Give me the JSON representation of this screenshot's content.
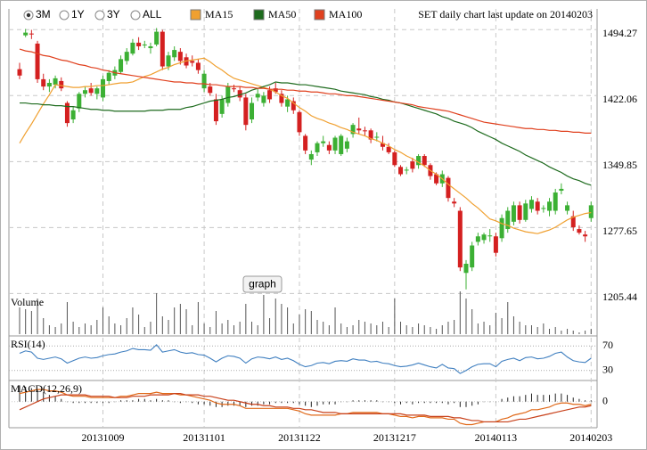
{
  "chart_data": {
    "type": "candlestick",
    "title": "SET daily chart last update on 20140203",
    "range_buttons": [
      "3M",
      "1Y",
      "3Y",
      "ALL"
    ],
    "selected_range": 0,
    "button": "graph",
    "grid": true,
    "up_color": "#3cb034",
    "down_color": "#d42020",
    "categories": [
      null,
      null,
      null,
      null,
      null,
      null,
      null,
      null,
      null,
      null,
      null,
      null,
      null,
      null,
      "20131009",
      null,
      null,
      null,
      null,
      null,
      null,
      null,
      null,
      null,
      null,
      null,
      null,
      null,
      null,
      null,
      null,
      "20131101",
      null,
      null,
      null,
      null,
      null,
      null,
      null,
      null,
      null,
      null,
      null,
      null,
      null,
      null,
      null,
      "20131122",
      null,
      null,
      null,
      null,
      null,
      null,
      null,
      null,
      null,
      null,
      null,
      null,
      null,
      null,
      null,
      "20131217",
      null,
      null,
      null,
      null,
      null,
      null,
      null,
      null,
      null,
      null,
      null,
      null,
      null,
      null,
      null,
      null,
      "20140113",
      null,
      null,
      null,
      null,
      null,
      null,
      null,
      null,
      null,
      null,
      null,
      null,
      null,
      null,
      null,
      "20140203"
    ],
    "open": [
      1451,
      1488,
      1490,
      1479,
      1440,
      1432,
      1434,
      1438,
      1414,
      1396,
      1408,
      1424,
      1430,
      1424,
      1420,
      1438,
      1444,
      1448,
      1460,
      1468,
      1480,
      1477,
      1474,
      1478,
      1492,
      1454,
      1464,
      1470,
      1464,
      1460,
      1458,
      1430,
      1432,
      1418,
      1402,
      1414,
      1430,
      1428,
      1420,
      1396,
      1420,
      1414,
      1428,
      1430,
      1424,
      1410,
      1416,
      1404,
      1378,
      1352,
      1360,
      1370,
      1368,
      1362,
      1358,
      1364,
      1380,
      1386,
      1384,
      1384,
      1376,
      1370,
      1366,
      1360,
      1344,
      1340,
      1350,
      1346,
      1356,
      1346,
      1336,
      1326,
      1332,
      1306,
      1296,
      1228,
      1234,
      1262,
      1264,
      1268,
      1268,
      1266,
      1276,
      1284,
      1302,
      1286,
      1298,
      1306,
      1298,
      1296,
      1296,
      1318,
      1296,
      1290,
      1276,
      1270,
      1288
    ],
    "high": [
      1458,
      1495,
      1494,
      1482,
      1446,
      1440,
      1444,
      1442,
      1416,
      1410,
      1426,
      1432,
      1436,
      1432,
      1444,
      1450,
      1454,
      1466,
      1474,
      1484,
      1486,
      1482,
      1480,
      1496,
      1494,
      1470,
      1476,
      1474,
      1468,
      1466,
      1462,
      1450,
      1436,
      1424,
      1422,
      1436,
      1434,
      1432,
      1424,
      1420,
      1430,
      1426,
      1432,
      1436,
      1428,
      1422,
      1420,
      1406,
      1380,
      1362,
      1372,
      1378,
      1372,
      1378,
      1380,
      1376,
      1392,
      1398,
      1388,
      1386,
      1382,
      1378,
      1370,
      1362,
      1346,
      1344,
      1354,
      1358,
      1358,
      1348,
      1338,
      1340,
      1334,
      1310,
      1300,
      1242,
      1262,
      1272,
      1272,
      1276,
      1272,
      1292,
      1300,
      1306,
      1306,
      1308,
      1312,
      1310,
      1302,
      1310,
      1320,
      1326,
      1306,
      1296,
      1280,
      1274,
      1306
    ],
    "low": [
      1440,
      1486,
      1484,
      1436,
      1428,
      1426,
      1430,
      1427,
      1388,
      1392,
      1404,
      1420,
      1422,
      1418,
      1416,
      1434,
      1440,
      1446,
      1456,
      1466,
      1472,
      1474,
      1468,
      1476,
      1450,
      1450,
      1460,
      1456,
      1452,
      1454,
      1446,
      1426,
      1422,
      1390,
      1398,
      1410,
      1426,
      1416,
      1384,
      1392,
      1416,
      1410,
      1414,
      1424,
      1410,
      1404,
      1402,
      1378,
      1358,
      1346,
      1356,
      1366,
      1358,
      1358,
      1356,
      1360,
      1376,
      1380,
      1378,
      1370,
      1372,
      1362,
      1358,
      1344,
      1334,
      1336,
      1338,
      1342,
      1344,
      1330,
      1324,
      1322,
      1306,
      1300,
      1230,
      1210,
      1230,
      1258,
      1260,
      1262,
      1246,
      1262,
      1272,
      1280,
      1282,
      1284,
      1294,
      1292,
      1294,
      1290,
      1292,
      1314,
      1292,
      1274,
      1270,
      1262,
      1284
    ],
    "close": [
      1444,
      1491,
      1489,
      1440,
      1432,
      1436,
      1441,
      1430,
      1392,
      1406,
      1424,
      1428,
      1425,
      1430,
      1440,
      1447,
      1450,
      1462,
      1470,
      1480,
      1476,
      1478,
      1476,
      1492,
      1454,
      1466,
      1472,
      1460,
      1455,
      1458,
      1450,
      1446,
      1425,
      1394,
      1418,
      1432,
      1429,
      1420,
      1390,
      1414,
      1424,
      1422,
      1418,
      1426,
      1414,
      1418,
      1406,
      1382,
      1362,
      1358,
      1370,
      1372,
      1362,
      1376,
      1378,
      1372,
      1390,
      1384,
      1383,
      1374,
      1377,
      1366,
      1360,
      1346,
      1336,
      1341,
      1342,
      1356,
      1346,
      1334,
      1326,
      1336,
      1310,
      1304,
      1234,
      1238,
      1258,
      1268,
      1270,
      1269,
      1250,
      1288,
      1296,
      1302,
      1286,
      1304,
      1308,
      1296,
      1299,
      1306,
      1316,
      1320,
      1302,
      1278,
      1272,
      1268,
      1302
    ],
    "ylim": [
      1159,
      1515
    ],
    "yticks": [
      1205.44,
      1277.65,
      1349.85,
      1422.06,
      1494.27
    ],
    "overlays": [
      {
        "name": "MA15",
        "color": "#f0a030",
        "values": [
          1370,
          1381,
          1391,
          1402,
          1413,
          1423,
          1434,
          1433,
          1432,
          1431,
          1431,
          1432,
          1432,
          1433,
          1433,
          1434,
          1435,
          1436,
          1436,
          1437,
          1440,
          1443,
          1445,
          1448,
          1451,
          1453,
          1456,
          1458,
          1460,
          1461,
          1462,
          1463,
          1459,
          1454,
          1450,
          1445,
          1441,
          1439,
          1437,
          1435,
          1433,
          1431,
          1429,
          1426,
          1422,
          1419,
          1414,
          1409,
          1405,
          1400,
          1397,
          1395,
          1392,
          1390,
          1387,
          1385,
          1382,
          1380,
          1378,
          1375,
          1373,
          1370,
          1367,
          1363,
          1360,
          1356,
          1353,
          1349,
          1345,
          1340,
          1336,
          1331,
          1325,
          1320,
          1315,
          1310,
          1304,
          1299,
          1293,
          1287,
          1285,
          1282,
          1280,
          1277,
          1275,
          1273,
          1272,
          1271,
          1273,
          1275,
          1278,
          1282,
          1286,
          1289,
          1291,
          1293,
          1294
        ]
      },
      {
        "name": "MA50",
        "color": "#1e6b1e",
        "values": [
          1414,
          1414,
          1413,
          1413,
          1412,
          1412,
          1411,
          1411,
          1410,
          1410,
          1409,
          1408,
          1407,
          1407,
          1406,
          1406,
          1405,
          1405,
          1405,
          1405,
          1405,
          1405,
          1406,
          1406,
          1406,
          1407,
          1407,
          1407,
          1409,
          1410,
          1412,
          1414,
          1416,
          1417,
          1418,
          1420,
          1421,
          1423,
          1425,
          1428,
          1430,
          1432,
          1434,
          1437,
          1436,
          1436,
          1435,
          1434,
          1434,
          1433,
          1432,
          1431,
          1430,
          1429,
          1427,
          1426,
          1425,
          1424,
          1423,
          1421,
          1420,
          1418,
          1417,
          1415,
          1414,
          1412,
          1410,
          1408,
          1406,
          1404,
          1402,
          1399,
          1397,
          1394,
          1392,
          1390,
          1387,
          1383,
          1380,
          1377,
          1374,
          1370,
          1367,
          1364,
          1361,
          1357,
          1354,
          1351,
          1348,
          1344,
          1341,
          1338,
          1334,
          1331,
          1329,
          1326,
          1324
        ]
      },
      {
        "name": "MA100",
        "color": "#e0401e",
        "values": [
          1473,
          1471,
          1470,
          1468,
          1466,
          1465,
          1463,
          1461,
          1460,
          1458,
          1456,
          1455,
          1453,
          1452,
          1450,
          1449,
          1447,
          1446,
          1445,
          1444,
          1443,
          1442,
          1441,
          1440,
          1439,
          1438,
          1437,
          1437,
          1436,
          1436,
          1435,
          1435,
          1434,
          1434,
          1433,
          1432,
          1432,
          1432,
          1431,
          1431,
          1430,
          1430,
          1429,
          1429,
          1429,
          1428,
          1428,
          1427,
          1427,
          1426,
          1426,
          1425,
          1424,
          1424,
          1423,
          1422,
          1422,
          1421,
          1420,
          1419,
          1418,
          1417,
          1416,
          1415,
          1414,
          1413,
          1412,
          1410,
          1409,
          1408,
          1407,
          1406,
          1405,
          1403,
          1401,
          1399,
          1397,
          1395,
          1393,
          1392,
          1391,
          1390,
          1389,
          1388,
          1387,
          1386,
          1386,
          1385,
          1385,
          1384,
          1384,
          1383,
          1383,
          1382,
          1382,
          1381,
          1381
        ]
      }
    ],
    "volume": {
      "label": "Volume",
      "ylim": [
        0,
        50
      ],
      "color": "#555555",
      "values": [
        30,
        28,
        26,
        40,
        18,
        10,
        8,
        12,
        36,
        14,
        8,
        12,
        10,
        16,
        30,
        20,
        12,
        10,
        18,
        30,
        22,
        8,
        14,
        46,
        20,
        16,
        30,
        34,
        28,
        10,
        36,
        12,
        8,
        26,
        12,
        16,
        10,
        14,
        34,
        14,
        10,
        44,
        18,
        40,
        34,
        30,
        12,
        22,
        28,
        26,
        16,
        14,
        10,
        30,
        12,
        8,
        10,
        16,
        14,
        12,
        10,
        14,
        8,
        40,
        14,
        10,
        8,
        12,
        10,
        8,
        6,
        10,
        14,
        16,
        48,
        40,
        28,
        12,
        14,
        10,
        24,
        18,
        36,
        20,
        14,
        10,
        10,
        8,
        12,
        6,
        8,
        4,
        6,
        4,
        2,
        4,
        6
      ]
    },
    "rsi": {
      "label": "RSI(14)",
      "ylim": [
        15,
        85
      ],
      "yticks": [
        30,
        70
      ],
      "color": "#3f7fc0",
      "values": [
        58,
        62,
        60,
        50,
        48,
        50,
        52,
        49,
        42,
        46,
        50,
        52,
        50,
        51,
        54,
        56,
        57,
        60,
        62,
        66,
        64,
        64,
        63,
        72,
        60,
        62,
        64,
        60,
        58,
        59,
        56,
        55,
        50,
        44,
        50,
        54,
        53,
        50,
        42,
        49,
        52,
        51,
        49,
        52,
        48,
        50,
        46,
        40,
        36,
        38,
        42,
        43,
        41,
        45,
        46,
        45,
        49,
        47,
        47,
        44,
        45,
        42,
        41,
        38,
        36,
        37,
        39,
        42,
        39,
        36,
        34,
        40,
        34,
        33,
        25,
        30,
        36,
        40,
        41,
        41,
        36,
        45,
        48,
        50,
        46,
        51,
        52,
        49,
        50,
        53,
        58,
        60,
        52,
        46,
        44,
        43,
        50
      ]
    },
    "macd": {
      "label": "MACD(12,26,9)",
      "ylim": [
        -18,
        15
      ],
      "yticks": [
        0
      ],
      "histogram_color": "#222222",
      "series": [
        {
          "color": "#e06818",
          "values": [
            6,
            7,
            8,
            9,
            9,
            8,
            8,
            7,
            5,
            4,
            4,
            4,
            3,
            3,
            3,
            3,
            3,
            4,
            4,
            5,
            6,
            6,
            6,
            7,
            6,
            6,
            6,
            5,
            5,
            4,
            3,
            2,
            1,
            -1,
            -2,
            -2,
            -2,
            -3,
            -5,
            -5,
            -5,
            -5,
            -5,
            -5,
            -5,
            -5,
            -6,
            -7,
            -9,
            -10,
            -10,
            -10,
            -10,
            -10,
            -9,
            -9,
            -8,
            -8,
            -8,
            -8,
            -8,
            -9,
            -9,
            -10,
            -11,
            -11,
            -12,
            -11,
            -11,
            -12,
            -12,
            -12,
            -13,
            -13,
            -16,
            -17,
            -17,
            -16,
            -15,
            -15,
            -15,
            -13,
            -12,
            -10,
            -9,
            -8,
            -6,
            -6,
            -5,
            -4,
            -2,
            -1,
            -1,
            -2,
            -2,
            -3,
            -2
          ]
        },
        {
          "color": "#c8401a",
          "values": [
            -6,
            -4,
            -2,
            0,
            2,
            3,
            4,
            5,
            5,
            5,
            5,
            5,
            4,
            4,
            4,
            4,
            3,
            3,
            3,
            4,
            4,
            4,
            5,
            5,
            5,
            5,
            6,
            6,
            5,
            5,
            5,
            4,
            4,
            3,
            2,
            1,
            1,
            0,
            -1,
            -2,
            -2,
            -3,
            -3,
            -4,
            -4,
            -4,
            -5,
            -5,
            -6,
            -6,
            -7,
            -8,
            -8,
            -8,
            -9,
            -9,
            -9,
            -9,
            -9,
            -9,
            -9,
            -9,
            -9,
            -9,
            -9,
            -10,
            -10,
            -10,
            -10,
            -11,
            -11,
            -11,
            -11,
            -12,
            -12,
            -13,
            -14,
            -14,
            -15,
            -15,
            -15,
            -15,
            -15,
            -14,
            -13,
            -13,
            -12,
            -11,
            -10,
            -9,
            -8,
            -7,
            -6,
            -5,
            -4,
            -4,
            -3
          ]
        }
      ],
      "histogram": [
        12,
        11,
        10,
        9,
        7,
        5,
        4,
        2,
        0,
        -1,
        -1,
        -1,
        -1,
        -1,
        -1,
        -1,
        0,
        1,
        1,
        1,
        2,
        2,
        1,
        2,
        1,
        1,
        0,
        -1,
        0,
        -1,
        -2,
        -2,
        -3,
        -4,
        -4,
        -3,
        -3,
        -3,
        -4,
        -3,
        -3,
        -2,
        -2,
        -1,
        -1,
        -1,
        -1,
        -2,
        -3,
        -4,
        -3,
        -2,
        -2,
        -2,
        0,
        0,
        1,
        1,
        1,
        1,
        1,
        0,
        0,
        -1,
        -2,
        -1,
        -2,
        -1,
        -1,
        -1,
        -1,
        -1,
        -2,
        -1,
        -4,
        -4,
        -3,
        -2,
        0,
        0,
        0,
        2,
        3,
        4,
        4,
        5,
        6,
        5,
        5,
        5,
        6,
        6,
        5,
        3,
        2,
        1,
        1
      ]
    }
  }
}
